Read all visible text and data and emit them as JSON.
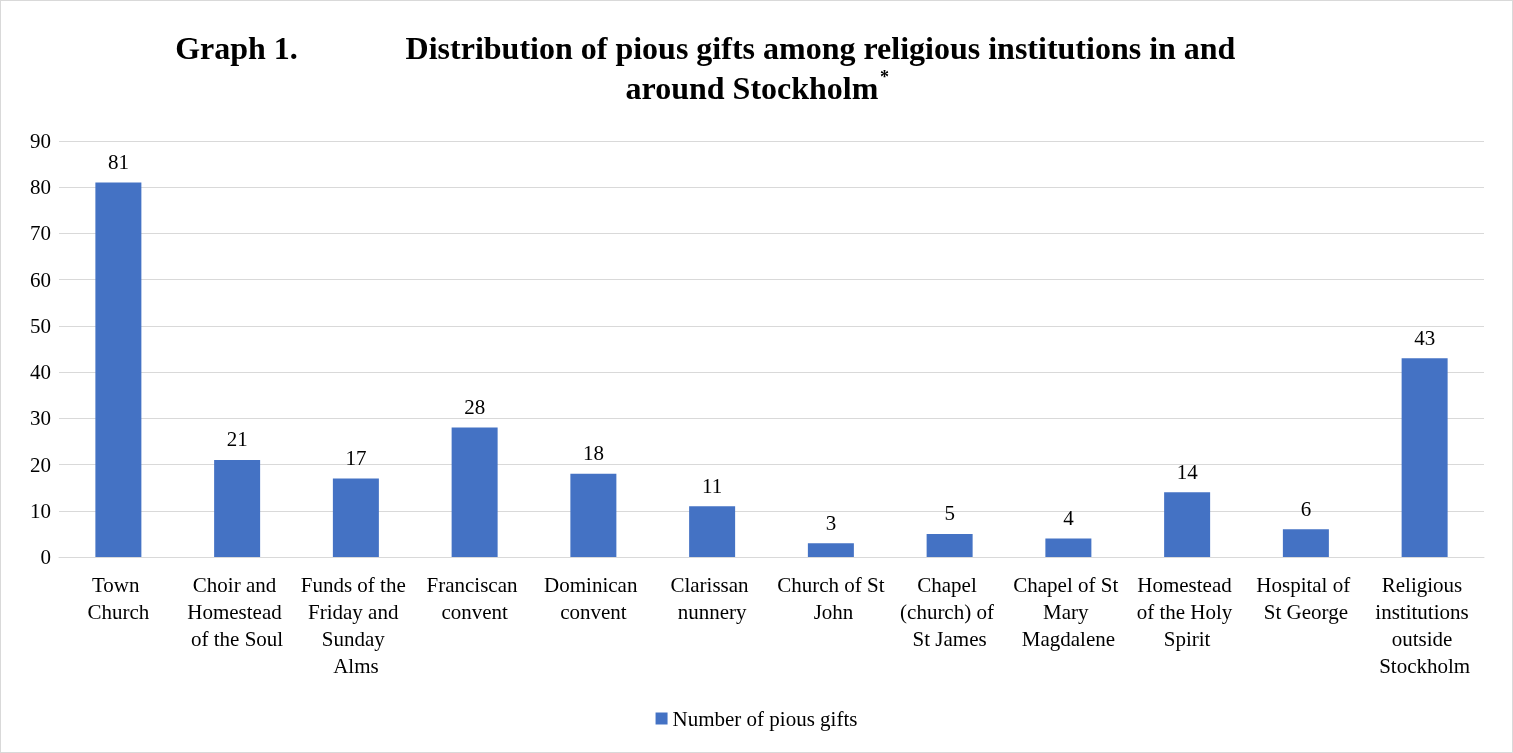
{
  "chart_data": {
    "type": "bar",
    "title": "Graph 1. Distribution of pious gifts among religious institutions in and around Stockholm$^{*}$",
    "categories": [
      "Town Church",
      "Choir and Homestead of the Soul",
      "Funds of the Friday and Sunday Alms",
      "Franciscan convent",
      "Dominican convent",
      "Clarissan nunnery",
      "Church of St John",
      "Chapel (church) of St James",
      "Chapel of St Mary Magdalene",
      "Homestead of the Holy Spirit",
      "Hospital of St George",
      "Religious institutions outside Stockholm"
    ],
    "series": [
      {
        "name": "Number of pious gifts",
        "color": "#4472c4",
        "values": [
          81,
          21,
          17,
          28,
          18,
          11,
          3,
          5,
          4,
          14,
          6,
          43
        ]
      }
    ],
    "ylim": [
      0,
      90
    ],
    "yticks": [
      0,
      10,
      20,
      30,
      40,
      50,
      60,
      70,
      80,
      90
    ],
    "grid": "y",
    "legend": "bottom",
    "data_labels": true
  }
}
